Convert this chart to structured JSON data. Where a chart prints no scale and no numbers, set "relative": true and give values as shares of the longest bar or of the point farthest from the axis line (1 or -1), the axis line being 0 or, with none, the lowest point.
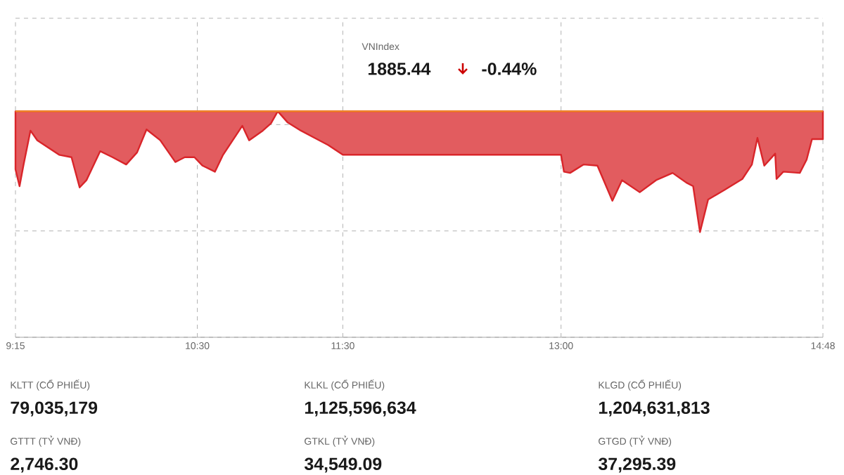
{
  "chart_data": {
    "type": "area",
    "title": "VNIndex",
    "relative": true,
    "grid": true,
    "xlim": [
      9.25,
      14.8
    ],
    "xticks": [
      {
        "value": 9.25,
        "label": "9:15"
      },
      {
        "value": 10.5,
        "label": "10:30"
      },
      {
        "value": 11.5,
        "label": "11:30"
      },
      {
        "value": 13,
        "label": "13:00"
      },
      {
        "value": 14.8,
        "label": "14:48"
      }
    ],
    "x": [
      9.25,
      9.278,
      9.306,
      9.353,
      9.4,
      9.475,
      9.55,
      9.635,
      9.691,
      9.738,
      9.832,
      9.917,
      10.011,
      10.086,
      10.151,
      10.245,
      10.349,
      10.414,
      10.48,
      10.536,
      10.621,
      10.677,
      10.809,
      10.856,
      10.95,
      11.006,
      11.053,
      11.119,
      11.212,
      11.306,
      11.4,
      11.5,
      13.0,
      13.02,
      13.062,
      13.156,
      13.25,
      13.353,
      13.419,
      13.541,
      13.653,
      13.767,
      13.861,
      13.908,
      13.955,
      14.011,
      14.124,
      14.246,
      14.312,
      14.35,
      14.397,
      14.472,
      14.481,
      14.528,
      14.641,
      14.688,
      14.725,
      14.77,
      14.8
    ],
    "series": [
      {
        "color": "#d9252a",
        "values": [
          -0.48,
          -0.62,
          -0.44,
          -0.16,
          -0.24,
          -0.3,
          -0.36,
          -0.38,
          -0.63,
          -0.57,
          -0.33,
          -0.38,
          -0.44,
          -0.34,
          -0.15,
          -0.24,
          -0.42,
          -0.38,
          -0.38,
          -0.45,
          -0.5,
          -0.36,
          -0.12,
          -0.24,
          -0.16,
          -0.1,
          0,
          -0.09,
          -0.16,
          -0.22,
          -0.28,
          -0.36,
          -0.36,
          -0.5,
          -0.51,
          -0.44,
          -0.45,
          -0.74,
          -0.57,
          -0.67,
          -0.57,
          -0.51,
          -0.59,
          -0.62,
          -1,
          -0.73,
          -0.65,
          -0.56,
          -0.44,
          -0.22,
          -0.45,
          -0.35,
          -0.56,
          -0.5,
          -0.51,
          -0.4,
          -0.23,
          -0.23,
          -0.23
        ]
      }
    ],
    "ref_lines": [
      {
        "axis": "y",
        "value": 0,
        "color": "#f08a24"
      }
    ],
    "annotations": [
      "1885.44",
      "-0.44%",
      "KLTT (CỔ PHIẾU)",
      "79,035,179",
      "KLKL (CỔ PHIẾU)",
      "1,125,596,634",
      "KLGD (CỔ PHIẾU)",
      "1,204,631,813",
      "GTTT (TỶ VNĐ)",
      "2,746.30",
      "GTKL (TỶ VNĐ)",
      "34,549.09",
      "GTGD (TỶ VNĐ)",
      "37,295.39"
    ]
  }
}
